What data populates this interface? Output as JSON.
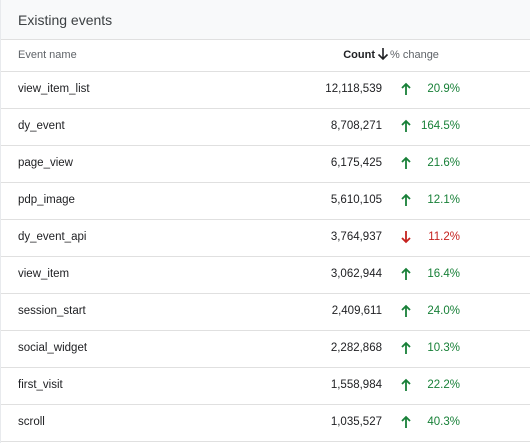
{
  "panel": {
    "title": "Existing events"
  },
  "columns": {
    "name": "Event name",
    "count": "Count",
    "change": "% change",
    "sort_icon": "arrow-down-icon"
  },
  "colors": {
    "positive": "#188038",
    "negative": "#c5221f"
  },
  "rows": [
    {
      "name": "view_item_list",
      "count": "12,118,539",
      "change": "20.9%",
      "direction": "up"
    },
    {
      "name": "dy_event",
      "count": "8,708,271",
      "change": "164.5%",
      "direction": "up"
    },
    {
      "name": "page_view",
      "count": "6,175,425",
      "change": "21.6%",
      "direction": "up"
    },
    {
      "name": "pdp_image",
      "count": "5,610,105",
      "change": "12.1%",
      "direction": "up"
    },
    {
      "name": "dy_event_api",
      "count": "3,764,937",
      "change": "11.2%",
      "direction": "down"
    },
    {
      "name": "view_item",
      "count": "3,062,944",
      "change": "16.4%",
      "direction": "up"
    },
    {
      "name": "session_start",
      "count": "2,409,611",
      "change": "24.0%",
      "direction": "up"
    },
    {
      "name": "social_widget",
      "count": "2,282,868",
      "change": "10.3%",
      "direction": "up"
    },
    {
      "name": "first_visit",
      "count": "1,558,984",
      "change": "22.2%",
      "direction": "up"
    },
    {
      "name": "scroll",
      "count": "1,035,527",
      "change": "40.3%",
      "direction": "up"
    }
  ]
}
